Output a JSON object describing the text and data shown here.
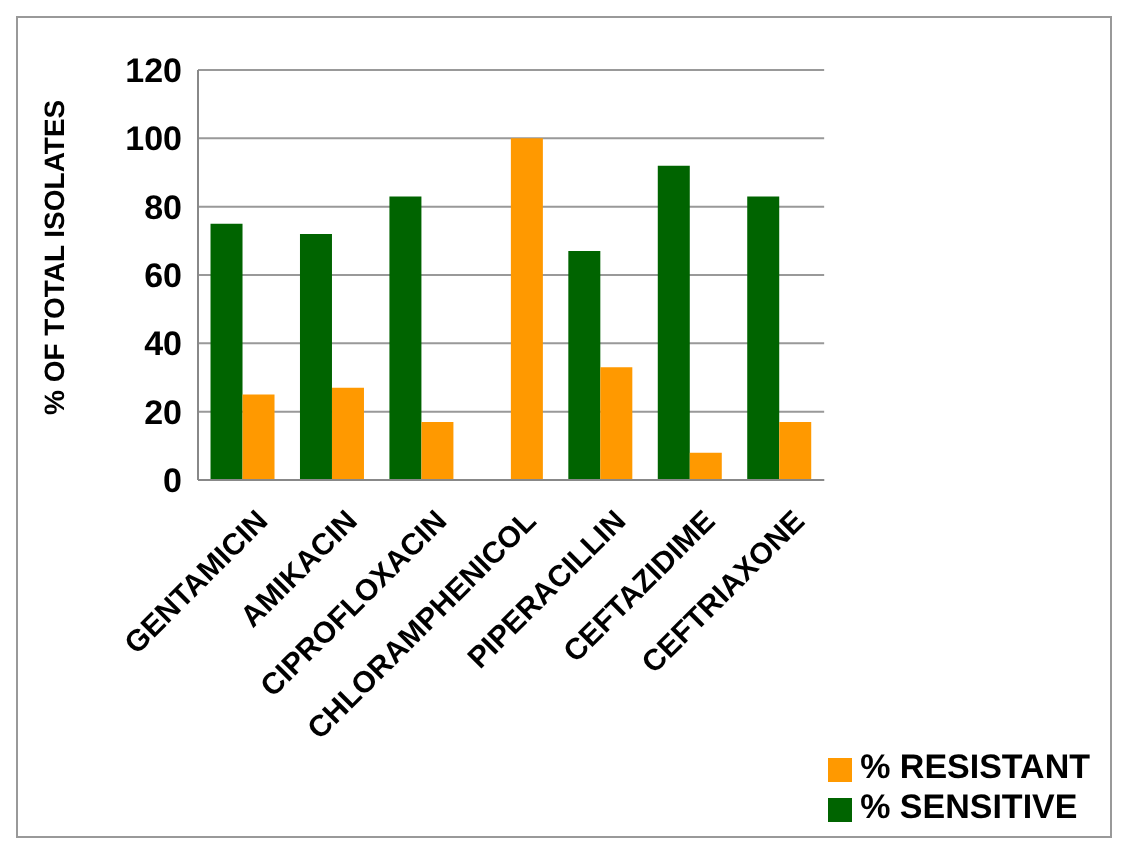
{
  "chart_data": {
    "type": "bar",
    "ylabel": "% OF TOTAL ISOLATES",
    "categories": [
      "GENTAMICIN",
      "AMIKACIN",
      "CIPROFLOXACIN",
      "CHLORAMPHENICOL",
      "PIPERACILLIN",
      "CEFTAZIDIME",
      "CEFTRIAXONE"
    ],
    "series": [
      {
        "name": "% SENSITIVE",
        "color": "#006400",
        "values": [
          75,
          72,
          83,
          0,
          67,
          92,
          83
        ]
      },
      {
        "name": "% RESISTANT",
        "color": "#ff9900",
        "values": [
          25,
          27,
          17,
          100,
          33,
          8,
          17
        ]
      }
    ],
    "ylim": [
      0,
      120
    ],
    "yticks": [
      0,
      20,
      40,
      60,
      80,
      100,
      120
    ],
    "grid": "y",
    "legend": "bottom right"
  }
}
